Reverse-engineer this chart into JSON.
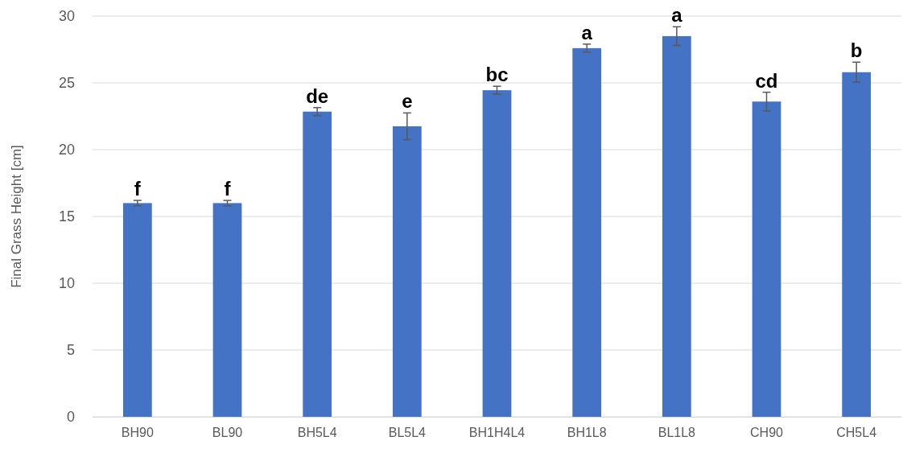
{
  "chart_data": {
    "type": "bar",
    "ylabel": "Final Grass Height [cm]",
    "categories": [
      "BH90",
      "BL90",
      "BH5L4",
      "BL5L4",
      "BH1H4L4",
      "BH1L8",
      "BL1L8",
      "CH90",
      "CH5L4"
    ],
    "values": [
      16.0,
      16.0,
      22.85,
      21.75,
      24.45,
      27.6,
      28.5,
      23.6,
      25.8
    ],
    "errors": [
      0.2,
      0.2,
      0.3,
      1.0,
      0.3,
      0.3,
      0.7,
      0.7,
      0.75
    ],
    "color": "#4472c4",
    "ylim": [
      0,
      30
    ],
    "yticks": [
      0,
      5,
      10,
      15,
      20,
      25,
      30
    ],
    "grid": "y",
    "annotations": [
      {
        "text": "f",
        "x": "BH90",
        "y": 16.0
      },
      {
        "text": "f",
        "x": "BL90",
        "y": 16.0
      },
      {
        "text": "de",
        "x": "BH5L4",
        "y": 22.85
      },
      {
        "text": "e",
        "x": "BL5L4",
        "y": 21.75
      },
      {
        "text": "bc",
        "x": "BH1H4L4",
        "y": 24.45
      },
      {
        "text": "a",
        "x": "BH1L8",
        "y": 27.6
      },
      {
        "text": "a",
        "x": "BL1L8",
        "y": 28.5
      },
      {
        "text": "cd",
        "x": "CH90",
        "y": 23.6
      },
      {
        "text": "b",
        "x": "CH5L4",
        "y": 25.8
      }
    ]
  }
}
